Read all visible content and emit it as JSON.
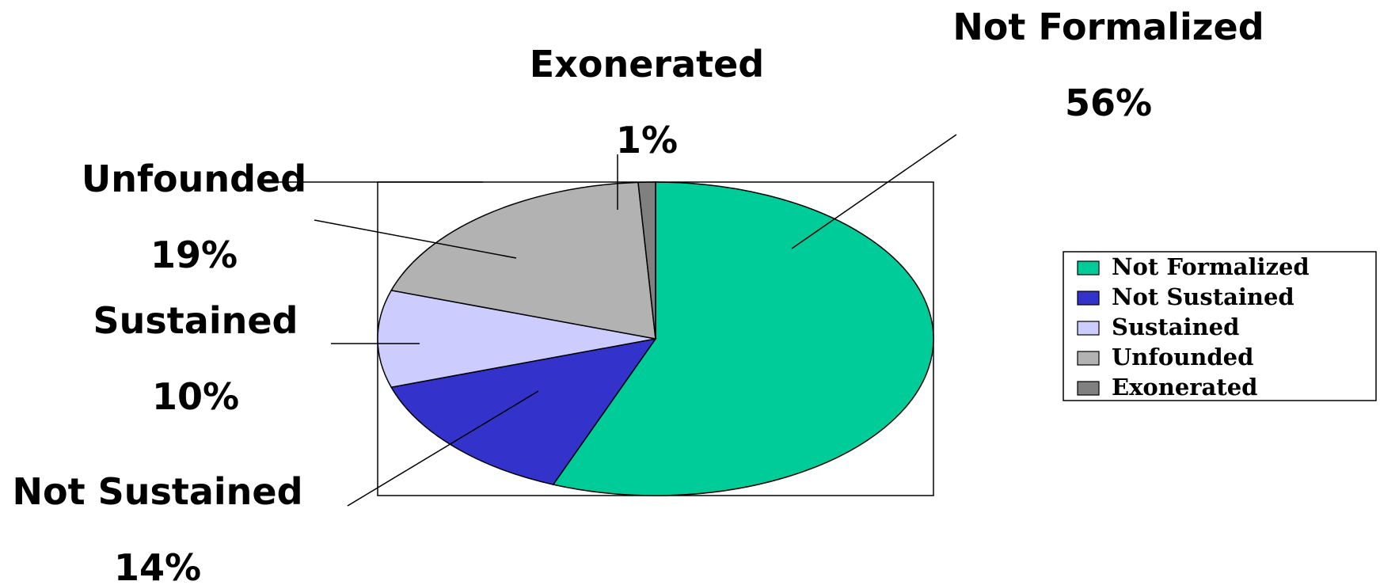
{
  "chart_data": {
    "type": "pie",
    "title": "",
    "categories": [
      "Not Formalized",
      "Not Sustained",
      "Sustained",
      "Unfounded",
      "Exonerated"
    ],
    "values": [
      56,
      14,
      10,
      19,
      1
    ],
    "value_labels": [
      "56%",
      "14%",
      "10%",
      "19%",
      "1%"
    ],
    "colors": [
      "#00cc99",
      "#3333cc",
      "#ccccff",
      "#b2b2b2",
      "#808080"
    ],
    "start": "12 o'clock",
    "direction": "clockwise",
    "legend": {
      "position": "right",
      "entries": [
        "Not Formalized",
        "Not Sustained",
        "Sustained",
        "Unfounded",
        "Exonerated"
      ]
    }
  }
}
